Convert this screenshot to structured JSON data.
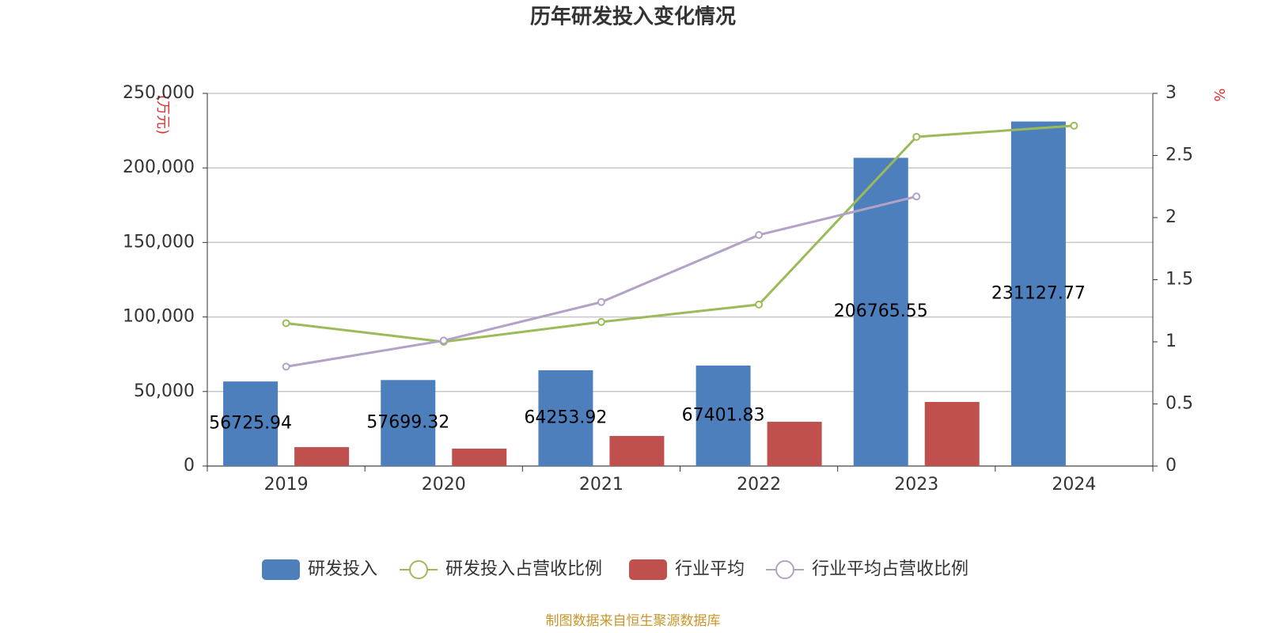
{
  "chart_data": {
    "type": "bar",
    "title": "历年研发投入变化情况",
    "y_label": "(万元)",
    "y2_label": "%",
    "source": "制图数据来自恒生聚源数据库",
    "categories": [
      "2019",
      "2020",
      "2021",
      "2022",
      "2023",
      "2024"
    ],
    "series": [
      {
        "name": "研发投入",
        "type": "bar",
        "color": "#4e7fbd",
        "show_labels": true,
        "values": [
          56725.94,
          57699.32,
          64253.92,
          67401.83,
          206765.55,
          231127.77
        ]
      },
      {
        "name": "研发投入占营收比例",
        "type": "line",
        "axis": "y2",
        "color": "#9bbb59",
        "values": [
          1.15,
          1.0,
          1.16,
          1.3,
          2.65,
          2.74
        ]
      },
      {
        "name": "行业平均",
        "type": "bar",
        "color": "#c0504d",
        "values": [
          12700,
          11700,
          20200,
          29700,
          43000,
          null
        ]
      },
      {
        "name": "行业平均占营收比例",
        "type": "line",
        "axis": "y2",
        "color": "#b3a2c7",
        "values": [
          0.8,
          1.01,
          1.32,
          1.86,
          2.17,
          null
        ]
      }
    ],
    "ylim": [
      0,
      250000
    ],
    "yticks": [
      0,
      {
        "value": 50000,
        "label": "50,000"
      },
      {
        "value": 100000,
        "label": "100,000"
      },
      {
        "value": 150000,
        "label": "150,000"
      },
      {
        "value": 200000,
        "label": "200,000"
      },
      {
        "value": 250000,
        "label": "250,000"
      }
    ],
    "y2lim": [
      0,
      3
    ],
    "y2ticks": [
      0,
      0.5,
      1,
      1.5,
      2,
      2.5,
      3
    ],
    "grid": true
  }
}
